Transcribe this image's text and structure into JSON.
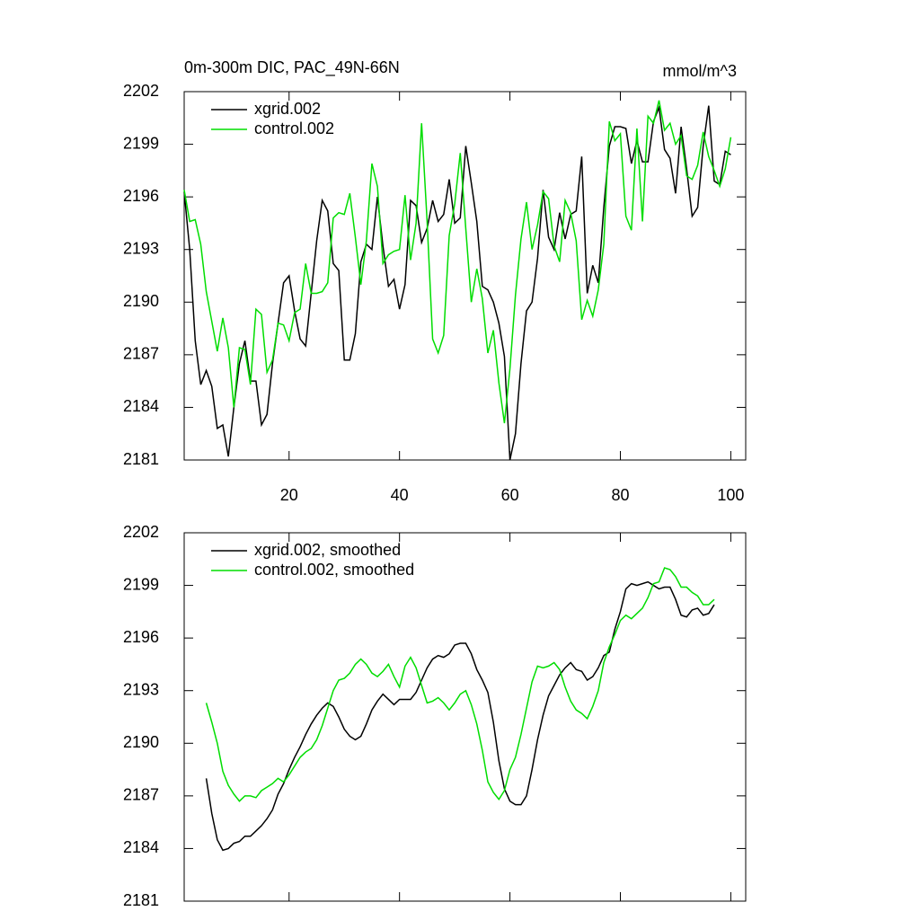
{
  "chart_data": [
    {
      "type": "line",
      "title": "0m-300m DIC, PAC_49N-66N",
      "units": "mmol/m^3",
      "legend": "top-left",
      "xlim": [
        1,
        102.7
      ],
      "xticks": [
        20,
        40,
        60,
        80,
        100
      ],
      "ylim": [
        2181,
        2202
      ],
      "yticks": [
        2181,
        2184,
        2187,
        2190,
        2193,
        2196,
        2199,
        2202
      ],
      "x": [
        1,
        2,
        3,
        4,
        5,
        6,
        7,
        8,
        9,
        10,
        11,
        12,
        13,
        14,
        15,
        16,
        17,
        18,
        19,
        20,
        21,
        22,
        23,
        24,
        25,
        26,
        27,
        28,
        29,
        30,
        31,
        32,
        33,
        34,
        35,
        36,
        37,
        38,
        39,
        40,
        41,
        42,
        43,
        44,
        45,
        46,
        47,
        48,
        49,
        50,
        51,
        52,
        53,
        54,
        55,
        56,
        57,
        58,
        59,
        60,
        61,
        62,
        63,
        64,
        65,
        66,
        67,
        68,
        69,
        70,
        71,
        72,
        73,
        74,
        75,
        76,
        77,
        78,
        79,
        80,
        81,
        82,
        83,
        84,
        85,
        86,
        87,
        88,
        89,
        90,
        91,
        92,
        93,
        94,
        95,
        96,
        97,
        98,
        99,
        100
      ],
      "series": [
        {
          "name": "xgrid.002",
          "color": "#000000",
          "values": [
            2196.3,
            2193,
            2187.8,
            2185.3,
            2186.1,
            2185.2,
            2182.8,
            2183,
            2181.2,
            2184,
            2186.5,
            2187.8,
            2185.5,
            2185.5,
            2183,
            2183.6,
            2186.5,
            2188.8,
            2191.1,
            2191.5,
            2189.5,
            2187.9,
            2187.5,
            2190.5,
            2193.5,
            2195.8,
            2195.2,
            2192.2,
            2191.8,
            2186.7,
            2186.7,
            2188.2,
            2192.3,
            2193.3,
            2193,
            2196,
            2193.2,
            2190.9,
            2191.3,
            2189.6,
            2191,
            2195.8,
            2195.5,
            2193.4,
            2194.2,
            2195.8,
            2194.6,
            2195,
            2197,
            2194.5,
            2194.8,
            2198.9,
            2196.8,
            2194.6,
            2190.9,
            2190.7,
            2190,
            2188.8,
            2186.9,
            2181,
            2182.5,
            2186.5,
            2189.5,
            2190,
            2192.5,
            2196.4,
            2193.7,
            2193,
            2195.1,
            2193.6,
            2195,
            2195.2,
            2198.3,
            2190.5,
            2192.1,
            2191.1,
            2195.4,
            2198.9,
            2200,
            2200,
            2199.9,
            2197.9,
            2199.2,
            2198,
            2198,
            2200.3,
            2201.1,
            2198.7,
            2198.2,
            2196.2,
            2200,
            2197.6,
            2194.9,
            2195.4,
            2198.9,
            2201.2,
            2196.9,
            2196.7,
            2198.6,
            2198.4
          ]
        },
        {
          "name": "control.002",
          "color": "#00dd00",
          "values": [
            2196.4,
            2194.6,
            2194.7,
            2193.3,
            2190.6,
            2188.9,
            2187.2,
            2189.1,
            2187.4,
            2184,
            2187.4,
            2187.3,
            2185.3,
            2189.6,
            2189.3,
            2186,
            2186.7,
            2188.8,
            2188.7,
            2187.8,
            2189.4,
            2189.6,
            2192.2,
            2190.5,
            2190.5,
            2190.6,
            2191.1,
            2194.8,
            2195.1,
            2195,
            2196.2,
            2193.7,
            2191,
            2193.5,
            2197.9,
            2196.6,
            2192.2,
            2192.7,
            2192.9,
            2193,
            2196.1,
            2192.4,
            2194.5,
            2200.2,
            2194.6,
            2187.9,
            2187.1,
            2188.1,
            2193.8,
            2195.6,
            2198.5,
            2194.2,
            2190,
            2191.9,
            2190.2,
            2187.1,
            2188.4,
            2185.4,
            2183.1,
            2186.2,
            2190.4,
            2193.6,
            2195.7,
            2193,
            2194.4,
            2196.3,
            2195.9,
            2193.2,
            2192.3,
            2195.8,
            2195.1,
            2193.5,
            2189,
            2190.1,
            2189.2,
            2190.7,
            2193.3,
            2200.3,
            2199.2,
            2199.6,
            2194.9,
            2194.1,
            2199.9,
            2194.6,
            2200.6,
            2200.2,
            2201.5,
            2199.8,
            2200.2,
            2199,
            2199.5,
            2197.2,
            2197,
            2197.8,
            2199.7,
            2198.3,
            2197.5,
            2196.6,
            2197.6,
            2199.4
          ]
        }
      ]
    },
    {
      "type": "line",
      "legend": "top-left",
      "xlim": [
        1,
        102.7
      ],
      "xticks": [
        20,
        40,
        60,
        80,
        100
      ],
      "ylim": [
        2181,
        2202
      ],
      "yticks": [
        2181,
        2184,
        2187,
        2190,
        2193,
        2196,
        2199,
        2202
      ],
      "x": [
        5,
        6,
        7,
        8,
        9,
        10,
        11,
        12,
        13,
        14,
        15,
        16,
        17,
        18,
        19,
        20,
        21,
        22,
        23,
        24,
        25,
        26,
        27,
        28,
        29,
        30,
        31,
        32,
        33,
        34,
        35,
        36,
        37,
        38,
        39,
        40,
        41,
        42,
        43,
        44,
        45,
        46,
        47,
        48,
        49,
        50,
        51,
        52,
        53,
        54,
        55,
        56,
        57,
        58,
        59,
        60,
        61,
        62,
        63,
        64,
        65,
        66,
        67,
        68,
        69,
        70,
        71,
        72,
        73,
        74,
        75,
        76,
        77,
        78,
        79,
        80,
        81,
        82,
        83,
        84,
        85,
        86,
        87,
        88,
        89,
        90,
        91,
        92,
        93,
        94,
        95,
        96,
        97
      ],
      "series": [
        {
          "name": "xgrid.002, smoothed",
          "color": "#000000",
          "values": [
            2188,
            2186,
            2184.5,
            2183.9,
            2184,
            2184.3,
            2184.4,
            2184.7,
            2184.7,
            2185,
            2185.3,
            2185.7,
            2186.2,
            2187.1,
            2187.7,
            2188.5,
            2189.2,
            2189.8,
            2190.5,
            2191.1,
            2191.6,
            2192,
            2192.3,
            2192.1,
            2191.5,
            2190.8,
            2190.4,
            2190.2,
            2190.4,
            2191.1,
            2191.9,
            2192.4,
            2192.8,
            2192.5,
            2192.2,
            2192.5,
            2192.5,
            2192.5,
            2192.9,
            2193.6,
            2194.3,
            2194.8,
            2195,
            2194.9,
            2195.1,
            2195.6,
            2195.7,
            2195.7,
            2195.1,
            2194.2,
            2193.6,
            2192.9,
            2191.2,
            2189,
            2187.4,
            2186.7,
            2186.5,
            2186.5,
            2187,
            2188.5,
            2190.2,
            2191.6,
            2192.7,
            2193.3,
            2193.9,
            2194.3,
            2194.6,
            2194.2,
            2194.1,
            2193.6,
            2193.8,
            2194.3,
            2195,
            2195.2,
            2196.5,
            2197.5,
            2198.8,
            2199.1,
            2199,
            2199.1,
            2199.2,
            2199,
            2198.8,
            2198.9,
            2198.9,
            2198.2,
            2197.3,
            2197.2,
            2197.6,
            2197.7,
            2197.3,
            2197.4,
            2197.9
          ]
        },
        {
          "name": "control.002, smoothed",
          "color": "#00dd00",
          "values": [
            2192.3,
            2191.2,
            2190,
            2188.4,
            2187.6,
            2187.1,
            2186.7,
            2187,
            2187,
            2186.9,
            2187.3,
            2187.5,
            2187.7,
            2188,
            2187.8,
            2188.2,
            2188.7,
            2189.2,
            2189.5,
            2189.7,
            2190.2,
            2191,
            2192,
            2193,
            2193.6,
            2193.7,
            2194,
            2194.5,
            2194.8,
            2194.5,
            2194,
            2193.8,
            2194.1,
            2194.5,
            2193.8,
            2193.2,
            2194.4,
            2194.9,
            2194.3,
            2193.3,
            2192.3,
            2192.4,
            2192.6,
            2192.3,
            2191.9,
            2192.3,
            2192.8,
            2193,
            2192.2,
            2191.1,
            2189.6,
            2187.8,
            2187.2,
            2186.8,
            2187.3,
            2188.5,
            2189.2,
            2190.5,
            2192,
            2193.5,
            2194.4,
            2194.3,
            2194.4,
            2194.6,
            2194.2,
            2193.2,
            2192.4,
            2191.9,
            2191.7,
            2191.4,
            2192.1,
            2193,
            2194.6,
            2195.5,
            2196.2,
            2197,
            2197.3,
            2197.1,
            2197.4,
            2197.7,
            2198.3,
            2199.1,
            2199.2,
            2200,
            2199.9,
            2199.5,
            2198.9,
            2198.9,
            2198.6,
            2198.4,
            2197.9,
            2197.9,
            2198.2
          ]
        }
      ]
    }
  ]
}
